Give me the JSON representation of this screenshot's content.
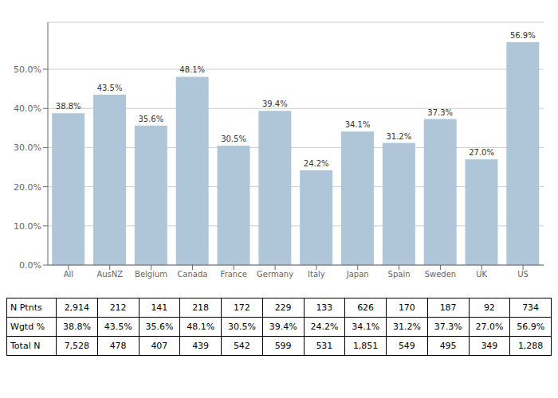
{
  "chart_data": {
    "type": "bar",
    "categories": [
      "All",
      "AusNZ",
      "Belgium",
      "Canada",
      "France",
      "Germany",
      "Italy",
      "Japan",
      "Spain",
      "Sweden",
      "UK",
      "US"
    ],
    "values": [
      38.8,
      43.5,
      35.6,
      48.1,
      30.5,
      39.4,
      24.2,
      34.1,
      31.2,
      37.3,
      27.0,
      56.9
    ],
    "value_labels": [
      "38.8%",
      "43.5%",
      "35.6%",
      "48.1%",
      "30.5%",
      "39.4%",
      "24.2%",
      "34.1%",
      "31.2%",
      "37.3%",
      "27.0%",
      "56.9%"
    ],
    "data_labels": true,
    "color": "#aec6d8",
    "ylim": [
      0,
      62
    ],
    "yticks": [
      {
        "value": 0,
        "label": "0.0%"
      },
      {
        "value": 10.0,
        "label": "10.0%"
      },
      {
        "value": 20.0,
        "label": "20.0%"
      },
      {
        "value": 30.0,
        "label": "30.0%"
      },
      {
        "value": 40.0,
        "label": "40.0%"
      },
      {
        "value": 50.0,
        "label": "50.0%"
      }
    ],
    "grid": true,
    "table_row_labels": [
      "N Ptnts",
      "Wgtd %",
      "Total N"
    ],
    "table_data": [
      [
        "2,914",
        "212",
        "141",
        "218",
        "172",
        "229",
        "133",
        "626",
        "170",
        "187",
        "92",
        "734"
      ],
      [
        "38.8%",
        "43.5%",
        "35.6%",
        "48.1%",
        "30.5%",
        "39.4%",
        "24.2%",
        "34.1%",
        "31.2%",
        "37.3%",
        "27.0%",
        "56.9%"
      ],
      [
        "7,528",
        "478",
        "407",
        "439",
        "542",
        "599",
        "531",
        "1,851",
        "549",
        "495",
        "349",
        "1,288"
      ]
    ]
  }
}
